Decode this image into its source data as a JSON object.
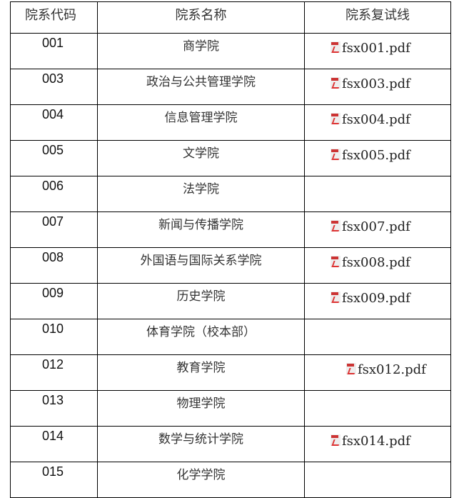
{
  "headers": [
    "院系代码",
    "院系名称",
    "院系复试线"
  ],
  "rows": [
    {
      "code": "001",
      "name": "商学院",
      "file": "fsx001.pdf"
    },
    {
      "code": "003",
      "name": "政治与公共管理学院",
      "file": "fsx003.pdf"
    },
    {
      "code": "004",
      "name": "信息管理学院",
      "file": "fsx004.pdf"
    },
    {
      "code": "005",
      "name": "文学院",
      "file": "fsx005.pdf"
    },
    {
      "code": "006",
      "name": "法学院",
      "file": ""
    },
    {
      "code": "007",
      "name": "新闻与传播学院",
      "file": "fsx007.pdf"
    },
    {
      "code": "008",
      "name": "外国语与国际关系学院",
      "file": "fsx008.pdf"
    },
    {
      "code": "009",
      "name": "历史学院",
      "file": "fsx009.pdf"
    },
    {
      "code": "010",
      "name": "体育学院（校本部）",
      "file": ""
    },
    {
      "code": "012",
      "name": "教育学院",
      "file": "fsx012.pdf"
    },
    {
      "code": "013",
      "name": "物理学院",
      "file": ""
    },
    {
      "code": "014",
      "name": "数学与统计学院",
      "file": "fsx014.pdf"
    },
    {
      "code": "015",
      "name": "化学学院",
      "file": ""
    }
  ],
  "icons": {
    "file": "pdf-file-icon"
  }
}
